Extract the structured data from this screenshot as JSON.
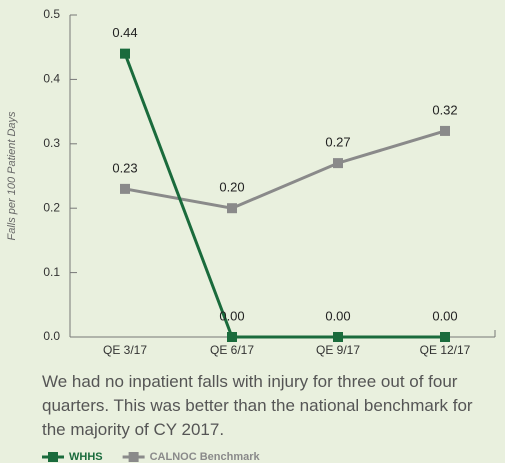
{
  "chart_data": {
    "type": "line",
    "y_label": "Falls per 100 Patient Days",
    "categories": [
      "QE 3/17",
      "QE 6/17",
      "QE 9/17",
      "QE 12/17"
    ],
    "series": [
      {
        "name": "WHHS",
        "color": "#1a6b3c",
        "values": [
          0.44,
          0,
          0,
          0
        ],
        "value_labels": [
          "0.44",
          "0.00",
          "0.00",
          "0.00"
        ]
      },
      {
        "name": "CALNOC Benchmark",
        "color": "#8a8a8a",
        "values": [
          0.23,
          0.2,
          0.27,
          0.32
        ],
        "value_labels": [
          "0.23",
          "0.20",
          "0.27",
          "0.32"
        ]
      }
    ],
    "ylim": [
      0,
      0.5
    ],
    "yticks": [
      {
        "value": 0,
        "label": "0.0"
      },
      0.1,
      0.2,
      0.3,
      0.4,
      0.5
    ],
    "caption": "We had no inpatient falls with injury for three out of four quarters. This was better than the national benchmark for the majority of CY 2017."
  }
}
